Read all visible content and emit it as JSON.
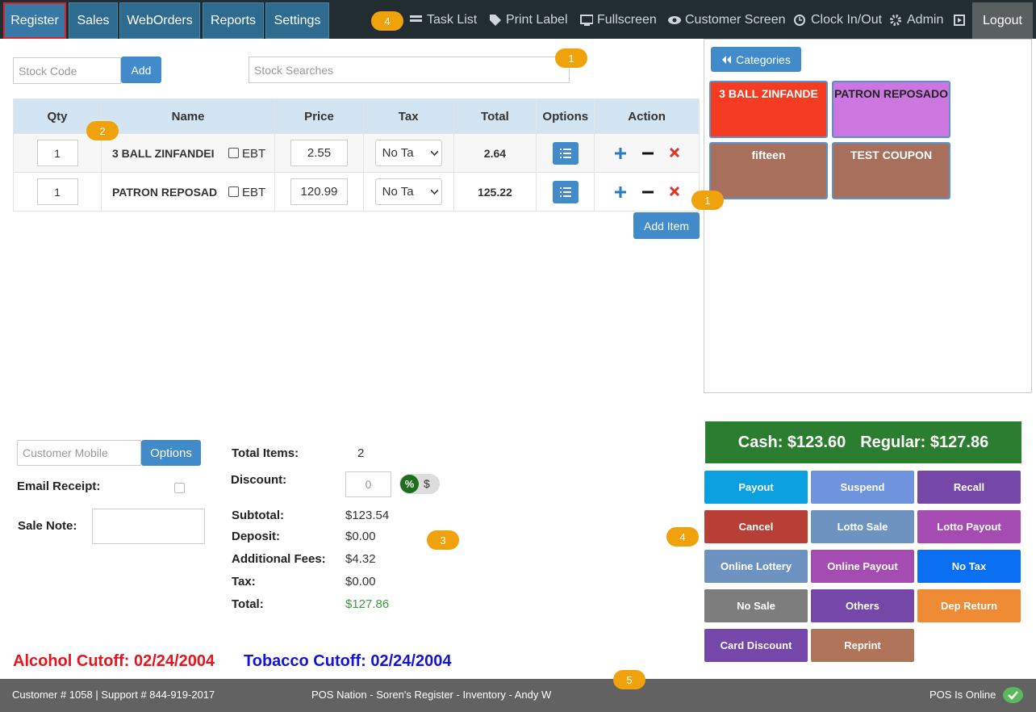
{
  "nav": {
    "tabs": [
      "Register",
      "Sales",
      "WebOrders",
      "Reports",
      "Settings"
    ],
    "tools": [
      "Task List",
      "Print Label",
      "Fullscreen",
      "Customer Screen",
      "Clock In/Out",
      "Admin"
    ],
    "logout": "Logout"
  },
  "stock": {
    "code_placeholder": "Stock Code",
    "add": "Add",
    "search_placeholder": "Stock Searches"
  },
  "table": {
    "headers": [
      "Qty",
      "Name",
      "Price",
      "Tax",
      "Total",
      "Options",
      "Action"
    ],
    "rows": [
      {
        "qty": "1",
        "name": "3 BALL ZINFANDEI",
        "ebt": "EBT",
        "price": "2.55",
        "tax": "No Ta",
        "total": "2.64"
      },
      {
        "qty": "1",
        "name": "PATRON REPOSAD",
        "ebt": "EBT",
        "price": "120.99",
        "tax": "No Ta",
        "total": "125.22"
      }
    ],
    "add_item": "Add Item"
  },
  "categories": {
    "button": "Categories",
    "tiles": [
      {
        "label": "3 BALL ZINFANDE",
        "color": "#f53b22",
        "text_color": "#ffffff"
      },
      {
        "label": "PATRON REPOSADO",
        "color": "#cc77e0",
        "text_color": "#222222"
      },
      {
        "label": "fifteen",
        "color": "#a8705c",
        "text_color": "#ffffff"
      },
      {
        "label": "TEST COUPON",
        "color": "#a8705c",
        "text_color": "#ffffff"
      }
    ]
  },
  "customer": {
    "mobile_placeholder": "Customer Mobile",
    "options": "Options",
    "email_receipt": "Email Receipt:",
    "sale_note": "Sale Note:"
  },
  "summary": {
    "total_items_label": "Total Items:",
    "total_items": "2",
    "discount_label": "Discount:",
    "discount": "0",
    "percent": "%",
    "dollar": "$",
    "rows": [
      {
        "label": "Subtotal:",
        "value": "$123.54"
      },
      {
        "label": "Deposit:",
        "value": "$0.00"
      },
      {
        "label": "Additional Fees:",
        "value": "$4.32"
      },
      {
        "label": "Tax:",
        "value": "$0.00"
      },
      {
        "label": "Total:",
        "value": "$127.86"
      }
    ]
  },
  "pay": {
    "cash": "Cash: $123.60",
    "regular": "Regular: $127.86"
  },
  "actions": [
    {
      "label": "Payout",
      "color": "#0ba0e0"
    },
    {
      "label": "Suspend",
      "color": "#6f93dc"
    },
    {
      "label": "Recall",
      "color": "#7447a8"
    },
    {
      "label": "Cancel",
      "color": "#b83f36"
    },
    {
      "label": "Lotto Sale",
      "color": "#6f93c0"
    },
    {
      "label": "Lotto Payout",
      "color": "#a54cb3"
    },
    {
      "label": "Online Lottery",
      "color": "#6f93c0"
    },
    {
      "label": "Online Payout",
      "color": "#a54cb3"
    },
    {
      "label": "No Tax",
      "color": "#0a6ff0"
    },
    {
      "label": "No Sale",
      "color": "#7d7d7d"
    },
    {
      "label": "Others",
      "color": "#7447a8"
    },
    {
      "label": "Dep Return",
      "color": "#ef8a35"
    },
    {
      "label": "Card Discount",
      "color": "#7447a8"
    },
    {
      "label": "Reprint",
      "color": "#b0745a"
    }
  ],
  "cutoffs": {
    "alcohol": "Alcohol Cutoff: 02/24/2004",
    "tobacco": "Tobacco Cutoff: 02/24/2004"
  },
  "footer": {
    "left": "Customer # 1058 | Support # 844-919-2017",
    "center": "POS Nation - Soren's Register - Inventory - Andy W",
    "status": "POS Is Online"
  },
  "callouts": [
    "4",
    "1",
    "2",
    "1",
    "3",
    "4",
    "5"
  ]
}
